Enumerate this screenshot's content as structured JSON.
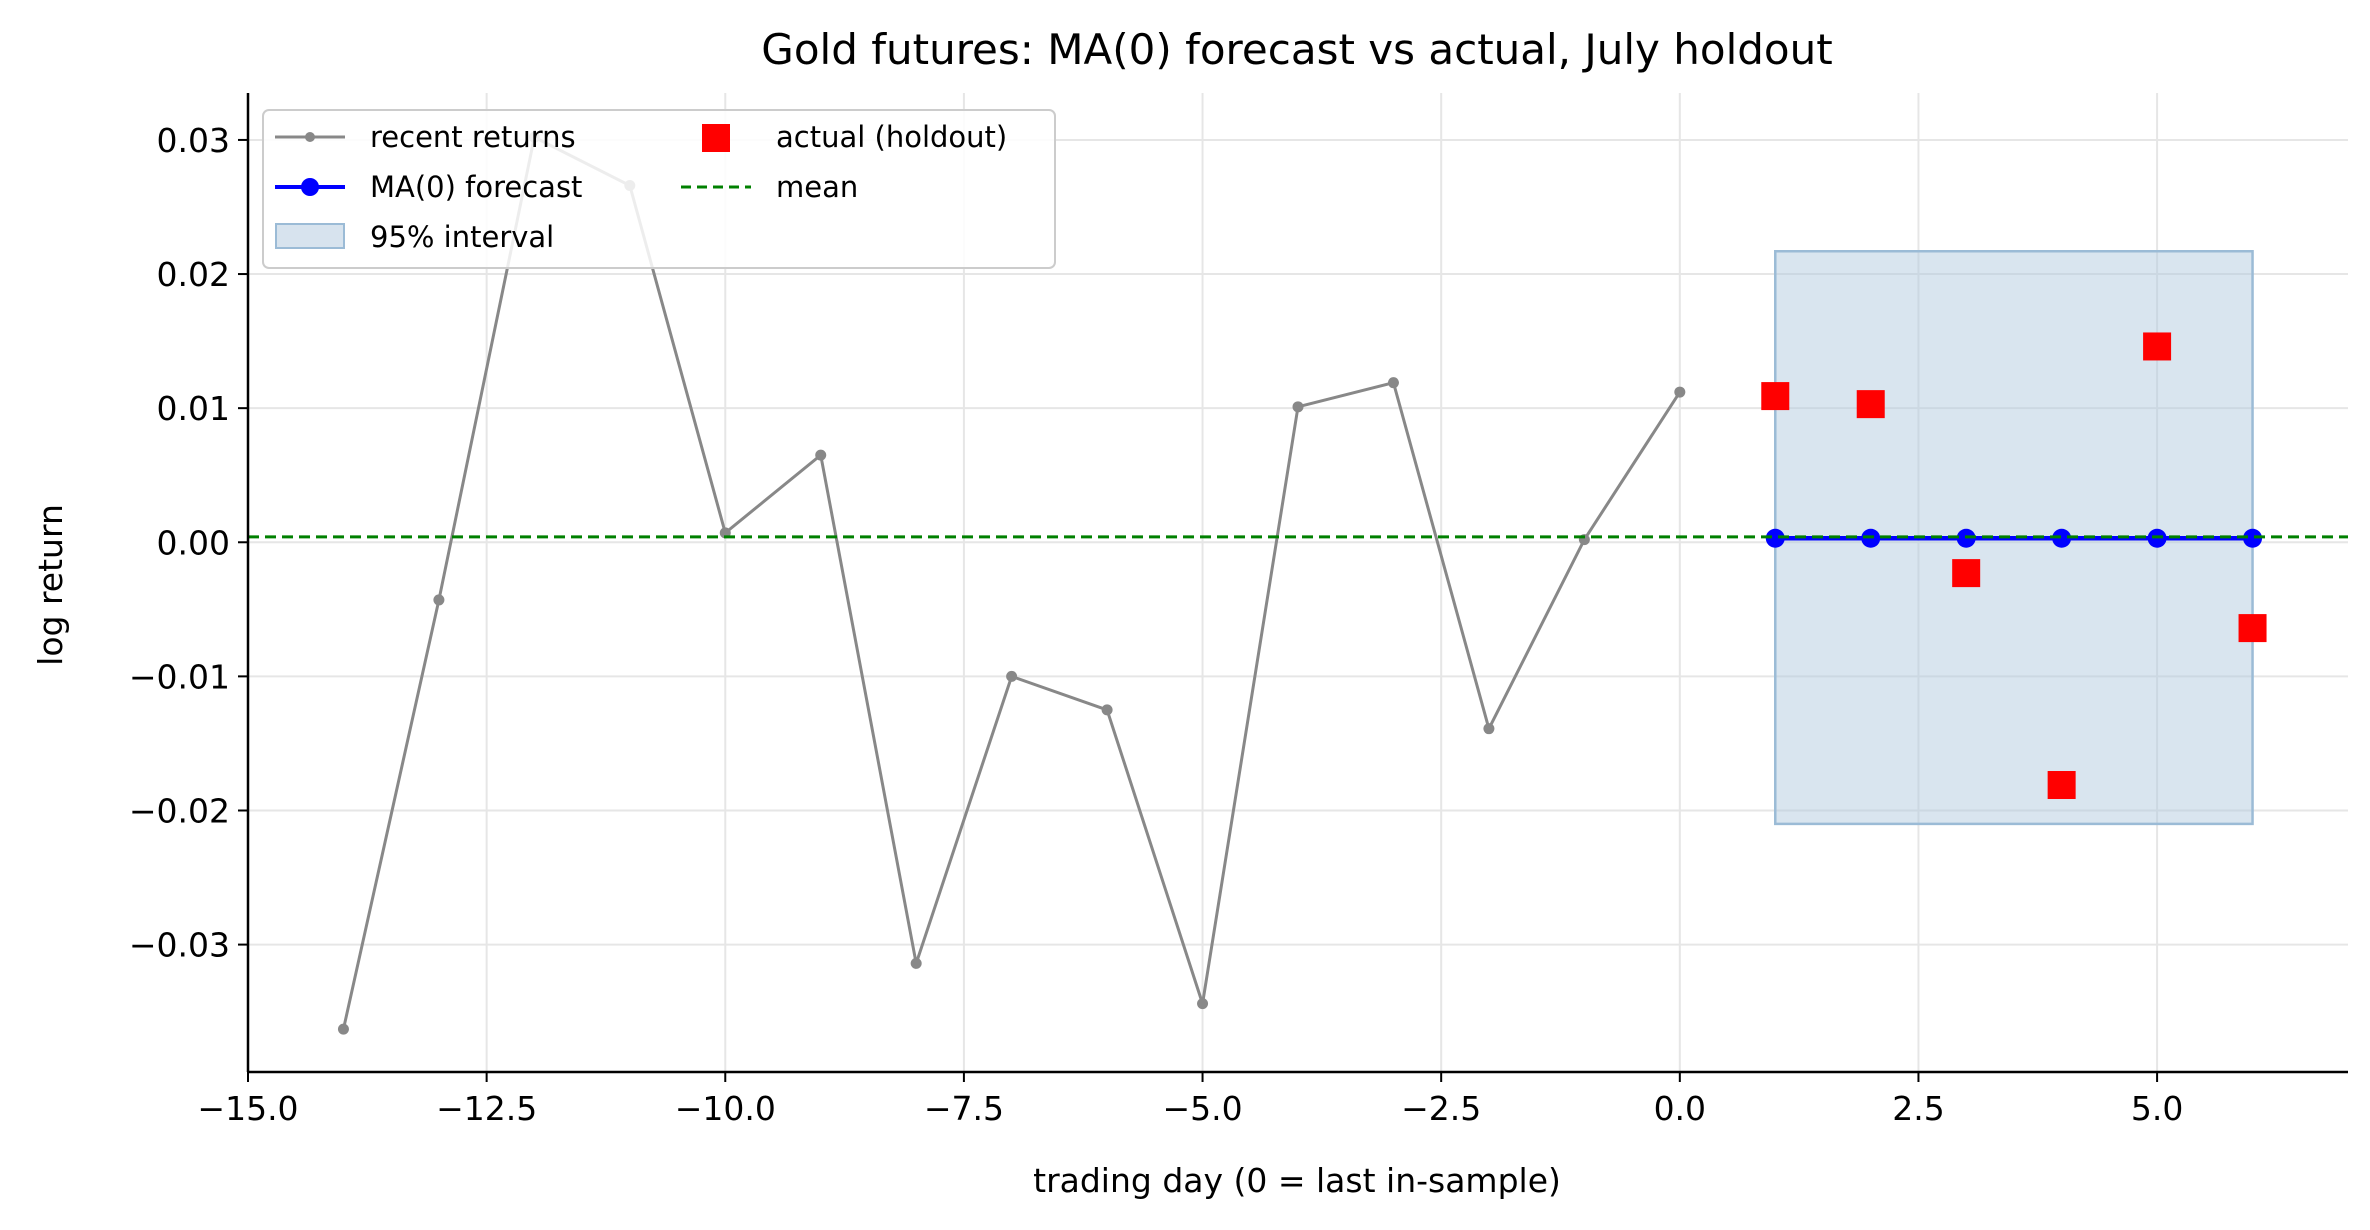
{
  "chart_data": {
    "type": "line",
    "title": "Gold futures: MA(0) forecast vs actual, July holdout",
    "xlabel": "trading day (0 = last in-sample)",
    "ylabel": "log return",
    "xlim": [
      -15.0,
      7.0
    ],
    "ylim": [
      -0.0395,
      0.0335
    ],
    "grid": true,
    "legend_position": "top-left",
    "x_ticks": [
      -15.0,
      -12.5,
      -10.0,
      -7.5,
      -5.0,
      -2.5,
      0.0,
      2.5,
      5.0
    ],
    "x_tick_labels": [
      "−15.0",
      "−12.5",
      "−10.0",
      "−7.5",
      "−5.0",
      "−2.5",
      "0.0",
      "2.5",
      "5.0"
    ],
    "y_ticks": [
      0.03,
      0.02,
      0.01,
      0.0,
      -0.01,
      -0.02,
      -0.03
    ],
    "y_tick_labels": [
      "0.03",
      "0.02",
      "0.01",
      "0.00",
      "−0.01",
      "−0.02",
      "−0.03"
    ],
    "series": [
      {
        "name": "recent returns",
        "kind": "line",
        "color": "#888888",
        "x": [
          -14,
          -13,
          -12,
          -11,
          -10,
          -9,
          -8,
          -7,
          -6,
          -5,
          -4,
          -3,
          -2,
          -1,
          0
        ],
        "y": [
          -0.0363,
          -0.0043,
          0.0302,
          0.0266,
          0.0007,
          0.0065,
          -0.0314,
          -0.01,
          -0.0125,
          -0.0344,
          0.0101,
          0.0119,
          -0.0139,
          0.0002,
          0.0112
        ]
      },
      {
        "name": "MA(0) forecast",
        "kind": "line",
        "color": "#0000ff",
        "x": [
          1,
          2,
          3,
          4,
          5,
          6
        ],
        "y": [
          0.0003,
          0.0003,
          0.0003,
          0.0003,
          0.0003,
          0.0003
        ]
      },
      {
        "name": "actual (holdout)",
        "kind": "scatter",
        "color": "#ff0000",
        "x": [
          1,
          2,
          3,
          4,
          5,
          6
        ],
        "y": [
          0.0109,
          0.0103,
          -0.0023,
          -0.0181,
          0.0146,
          -0.0064
        ]
      }
    ],
    "interval": {
      "name": "95% interval",
      "color": "#b0c8de",
      "x": [
        1,
        6
      ],
      "lower": -0.021,
      "upper": 0.0217
    },
    "mean_line": {
      "name": "mean",
      "color": "#008000",
      "y": 0.0004
    }
  }
}
